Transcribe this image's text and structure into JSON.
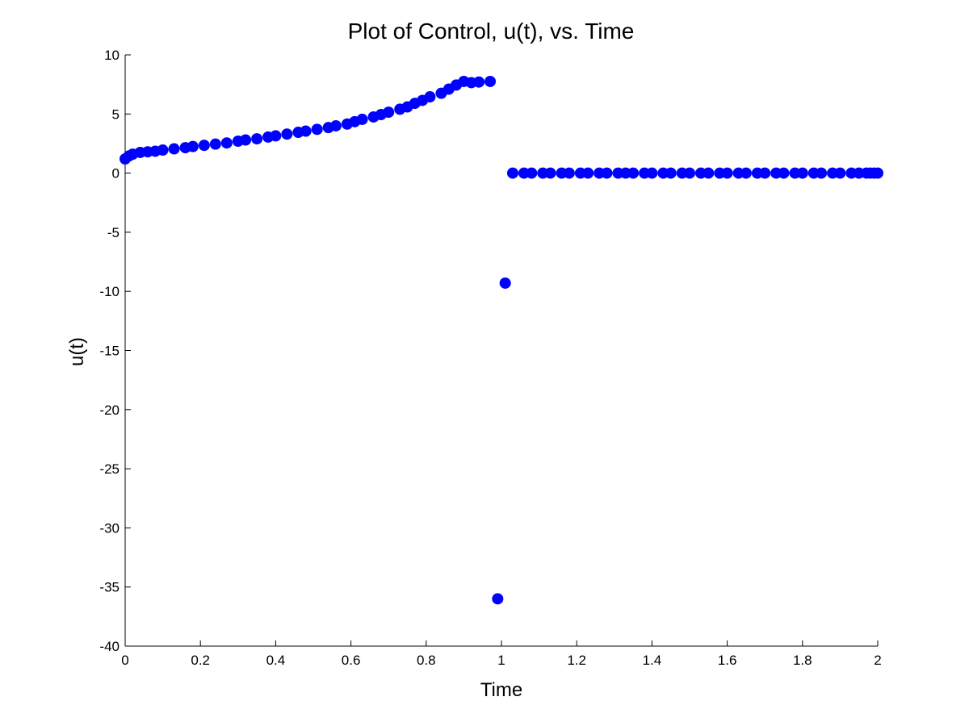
{
  "chart_data": {
    "type": "scatter",
    "title": "Plot of Control, u(t), vs. Time",
    "xlabel": "Time",
    "ylabel": "u(t)",
    "xlim": [
      0,
      2
    ],
    "ylim": [
      -40,
      10
    ],
    "xticks": [
      "0",
      "0.2",
      "0.4",
      "0.6",
      "0.8",
      "1",
      "1.2",
      "1.4",
      "1.6",
      "1.8",
      "2"
    ],
    "yticks": [
      "10",
      "5",
      "0",
      "-5",
      "-10",
      "-15",
      "-20",
      "-25",
      "-30",
      "-35",
      "-40"
    ],
    "grid": false,
    "legend": "none",
    "marker_color": "#0000ff",
    "points": [
      [
        0.0,
        1.2
      ],
      [
        0.01,
        1.45
      ],
      [
        0.02,
        1.6
      ],
      [
        0.04,
        1.75
      ],
      [
        0.06,
        1.8
      ],
      [
        0.08,
        1.85
      ],
      [
        0.1,
        1.95
      ],
      [
        0.13,
        2.05
      ],
      [
        0.16,
        2.15
      ],
      [
        0.18,
        2.25
      ],
      [
        0.21,
        2.35
      ],
      [
        0.24,
        2.45
      ],
      [
        0.27,
        2.55
      ],
      [
        0.3,
        2.7
      ],
      [
        0.32,
        2.8
      ],
      [
        0.35,
        2.9
      ],
      [
        0.38,
        3.05
      ],
      [
        0.4,
        3.15
      ],
      [
        0.43,
        3.3
      ],
      [
        0.46,
        3.45
      ],
      [
        0.48,
        3.55
      ],
      [
        0.51,
        3.7
      ],
      [
        0.54,
        3.85
      ],
      [
        0.56,
        4.0
      ],
      [
        0.59,
        4.15
      ],
      [
        0.61,
        4.35
      ],
      [
        0.63,
        4.55
      ],
      [
        0.66,
        4.75
      ],
      [
        0.68,
        4.95
      ],
      [
        0.7,
        5.15
      ],
      [
        0.73,
        5.4
      ],
      [
        0.75,
        5.6
      ],
      [
        0.77,
        5.9
      ],
      [
        0.79,
        6.15
      ],
      [
        0.81,
        6.45
      ],
      [
        0.84,
        6.75
      ],
      [
        0.86,
        7.1
      ],
      [
        0.88,
        7.45
      ],
      [
        0.9,
        7.75
      ],
      [
        0.92,
        7.65
      ],
      [
        0.94,
        7.7
      ],
      [
        0.97,
        7.75
      ],
      [
        0.99,
        -36.0
      ],
      [
        1.01,
        -9.3
      ],
      [
        1.03,
        0.0
      ],
      [
        1.06,
        0.0
      ],
      [
        1.08,
        0.0
      ],
      [
        1.11,
        0.0
      ],
      [
        1.13,
        0.0
      ],
      [
        1.16,
        0.0
      ],
      [
        1.18,
        0.0
      ],
      [
        1.21,
        0.0
      ],
      [
        1.23,
        0.0
      ],
      [
        1.26,
        0.0
      ],
      [
        1.28,
        0.0
      ],
      [
        1.31,
        0.0
      ],
      [
        1.33,
        0.0
      ],
      [
        1.35,
        0.0
      ],
      [
        1.38,
        0.0
      ],
      [
        1.4,
        0.0
      ],
      [
        1.43,
        0.0
      ],
      [
        1.45,
        0.0
      ],
      [
        1.48,
        0.0
      ],
      [
        1.5,
        0.0
      ],
      [
        1.53,
        0.0
      ],
      [
        1.55,
        0.0
      ],
      [
        1.58,
        0.0
      ],
      [
        1.6,
        0.0
      ],
      [
        1.63,
        0.0
      ],
      [
        1.65,
        0.0
      ],
      [
        1.68,
        0.0
      ],
      [
        1.7,
        0.0
      ],
      [
        1.73,
        0.0
      ],
      [
        1.75,
        0.0
      ],
      [
        1.78,
        0.0
      ],
      [
        1.8,
        0.0
      ],
      [
        1.83,
        0.0
      ],
      [
        1.85,
        0.0
      ],
      [
        1.88,
        0.0
      ],
      [
        1.9,
        0.0
      ],
      [
        1.93,
        0.0
      ],
      [
        1.95,
        0.0
      ],
      [
        1.97,
        0.0
      ],
      [
        1.98,
        0.0
      ],
      [
        1.99,
        0.0
      ],
      [
        2.0,
        0.0
      ]
    ]
  }
}
